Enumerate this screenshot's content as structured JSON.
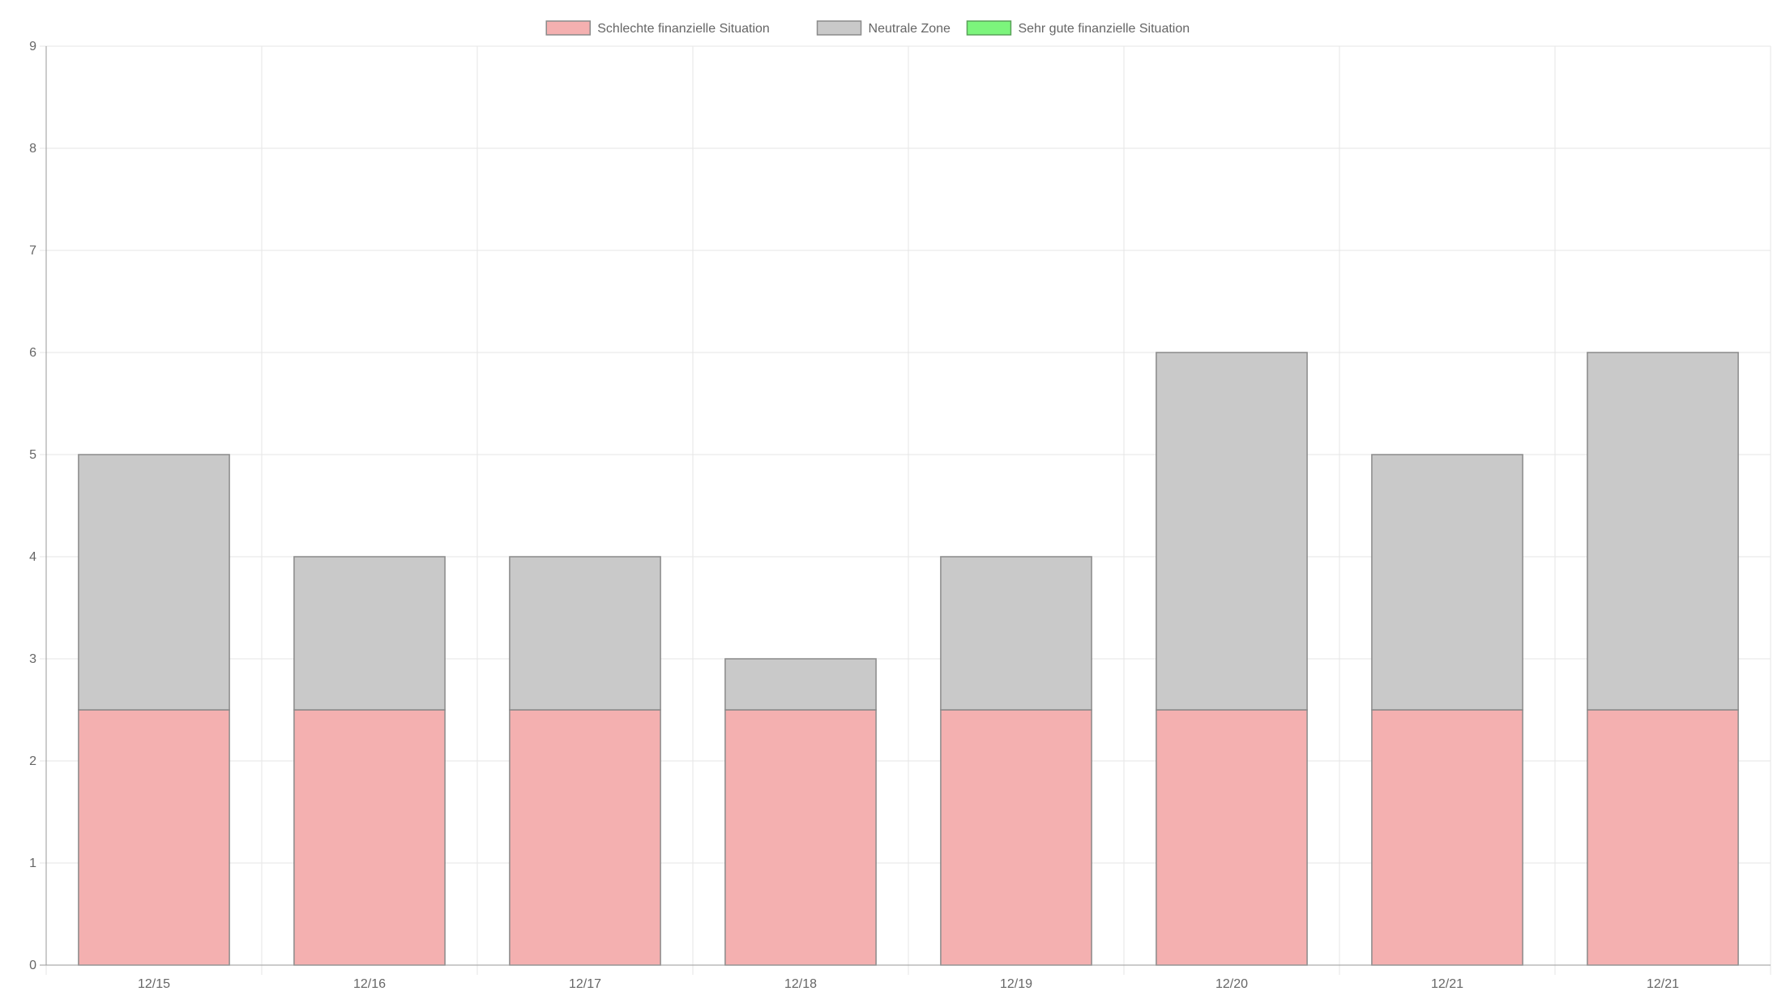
{
  "chart_data": {
    "type": "bar",
    "stacked": true,
    "categories": [
      "12/15",
      "12/16",
      "12/17",
      "12/18",
      "12/19",
      "12/20",
      "12/21",
      "12/21"
    ],
    "series": [
      {
        "name": "Schlechte finanzielle Situation",
        "color": "#f4b0b0",
        "border": "#8a8a8a",
        "values": [
          2.5,
          2.5,
          2.5,
          2.5,
          2.5,
          2.5,
          2.5,
          2.5
        ]
      },
      {
        "name": "Neutrale Zone",
        "color": "#c9c9c9",
        "border": "#8a8a8a",
        "values": [
          2.5,
          1.5,
          1.5,
          0.5,
          1.5,
          3.5,
          2.5,
          3.5
        ]
      },
      {
        "name": "Sehr gute finanzielle Situation",
        "color": "#7cf57c",
        "border": "#5aa05a",
        "values": [
          0,
          0,
          0,
          0,
          0,
          0,
          0,
          0
        ]
      }
    ],
    "ylim": [
      0,
      9
    ],
    "yticks": [
      0,
      1,
      2,
      3,
      4,
      5,
      6,
      7,
      8,
      9
    ],
    "grid": true,
    "legend_position": "top-center",
    "title": "",
    "xlabel": "",
    "ylabel": ""
  },
  "colors": {
    "grid": "#e6e6e6",
    "axis": "#9a9a9a",
    "text": "#666666"
  }
}
